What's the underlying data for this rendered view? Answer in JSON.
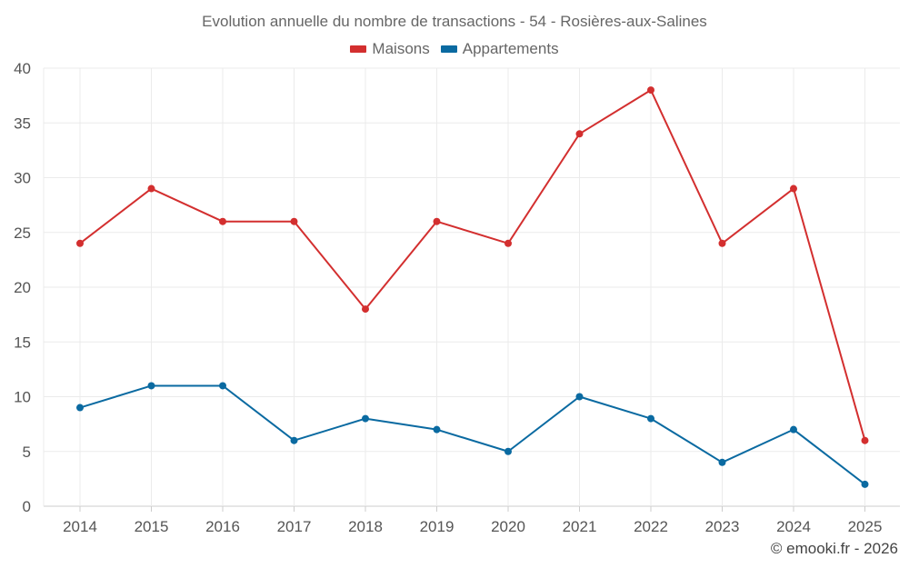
{
  "chart_data": {
    "type": "line",
    "title": "Evolution annuelle du nombre de transactions - 54 - Rosières-aux-Salines",
    "categories": [
      "2014",
      "2015",
      "2016",
      "2017",
      "2018",
      "2019",
      "2020",
      "2021",
      "2022",
      "2023",
      "2024",
      "2025"
    ],
    "series": [
      {
        "name": "Maisons",
        "color": "#d32f2f",
        "values": [
          24,
          29,
          26,
          26,
          18,
          26,
          24,
          34,
          38,
          24,
          29,
          6
        ]
      },
      {
        "name": "Appartements",
        "color": "#0a6aa1",
        "values": [
          9,
          11,
          11,
          6,
          8,
          7,
          5,
          10,
          8,
          4,
          7,
          2
        ]
      }
    ],
    "ylim": [
      0,
      40
    ],
    "yticks": [
      0,
      5,
      10,
      15,
      20,
      25,
      30,
      35,
      40
    ],
    "xlabel": "",
    "ylabel": "",
    "grid": true,
    "legend_position": "top-center"
  },
  "credit": "© emooki.fr - 2026"
}
